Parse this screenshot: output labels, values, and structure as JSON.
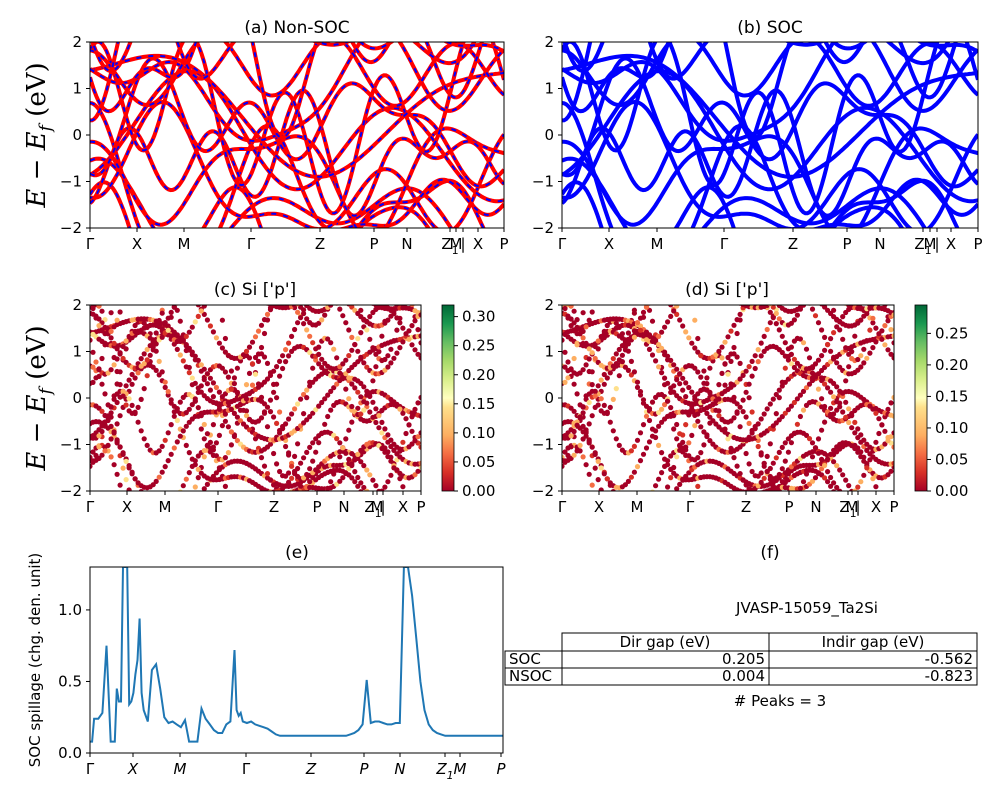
{
  "figure": {
    "ylabel": "E − E",
    "ylabel_sub": "f",
    "ylabel_unit": "(eV)"
  },
  "kpath_labels": [
    "Γ",
    "X",
    "M",
    "Γ",
    "Z",
    "P",
    "N",
    "Z",
    "M",
    "|",
    "X",
    "P"
  ],
  "kpath_labels_e": [
    "Γ",
    "X",
    "M",
    "Γ",
    "Z",
    "P",
    "N",
    "Z",
    "M",
    "P"
  ],
  "kpath_subscript": "1",
  "panels": {
    "a": {
      "title": "(a) Non-SOC",
      "line_color": "#ff0000",
      "dash_color": "#0000ff"
    },
    "b": {
      "title": "(b) SOC",
      "line_color": "#0000ff"
    },
    "c": {
      "title": "(c)  Si ['p']",
      "colorbar_ticks": [
        "0.00",
        "0.05",
        "0.10",
        "0.15",
        "0.20",
        "0.25",
        "0.30"
      ],
      "colorbar_max": 0.32
    },
    "d": {
      "title": "(d) Si ['p']",
      "colorbar_ticks": [
        "0.00",
        "0.05",
        "0.10",
        "0.15",
        "0.20",
        "0.25"
      ],
      "colorbar_max": 0.295
    },
    "e": {
      "title": "(e)",
      "ylabel": "SOC spillage (chg. den. unit)",
      "line_color": "#1f77b4"
    },
    "f": {
      "title": "(f)",
      "material": "JVASP-15059_Ta2Si",
      "table": {
        "headers": [
          "",
          "Dir gap (eV)",
          "Indir gap (eV)"
        ],
        "rows": [
          [
            "SOC",
            "0.205",
            "-0.562"
          ],
          [
            "NSOC",
            "0.004",
            "-0.823"
          ]
        ]
      },
      "peaks": "# Peaks = 3"
    }
  },
  "chart_data": [
    {
      "panel": "a",
      "type": "line",
      "title": "(a) Non-SOC",
      "ylabel": "E − E_f (eV)",
      "ylim": [
        -2,
        2
      ],
      "yticks": [
        -2,
        -1,
        0,
        1,
        2
      ],
      "x_ticks": [
        "Γ",
        "X",
        "M",
        "Γ",
        "Z",
        "P",
        "N",
        "Z1",
        "M",
        "|",
        "X",
        "P"
      ],
      "series_note": "band lines drawn red with dashed blue overlay"
    },
    {
      "panel": "b",
      "type": "line",
      "title": "(b) SOC",
      "ylabel": "",
      "ylim": [
        -2,
        2
      ],
      "yticks": [
        -2,
        -1,
        0,
        1,
        2
      ],
      "x_ticks": [
        "Γ",
        "X",
        "M",
        "Γ",
        "Z",
        "P",
        "N",
        "Z1",
        "M",
        "|",
        "X",
        "P"
      ]
    },
    {
      "panel": "c",
      "type": "scatter",
      "title": "(c)  Si ['p']",
      "ylim": [
        -2,
        2
      ],
      "colorbar_range": [
        0,
        0.32
      ]
    },
    {
      "panel": "d",
      "type": "scatter",
      "title": "(d) Si ['p']",
      "ylim": [
        -2,
        2
      ],
      "colorbar_range": [
        0,
        0.295
      ]
    },
    {
      "panel": "e",
      "type": "line",
      "title": "(e)",
      "ylabel": "SOC spillage (chg. den. unit)",
      "ylim": [
        0,
        1.3
      ],
      "yticks": [
        0.0,
        0.5,
        1.0
      ],
      "x_ticks": [
        "Γ",
        "X",
        "M",
        "Γ",
        "Z",
        "P",
        "N",
        "Z1",
        "M",
        "P"
      ],
      "x": [
        0,
        0.5,
        1,
        2,
        3,
        4,
        5,
        6,
        6.5,
        7,
        7.5,
        8,
        8.5,
        9,
        9.5,
        10,
        10.5,
        11,
        11.5,
        12,
        12.5,
        13,
        14,
        15,
        16,
        17,
        18,
        19,
        20,
        21,
        22,
        23,
        24,
        25,
        26,
        27,
        28,
        29,
        30,
        31,
        32,
        33,
        34,
        35,
        35.5,
        36,
        36.5,
        37,
        38,
        39,
        40,
        41,
        42,
        43,
        44,
        45,
        46,
        47,
        48,
        49,
        50,
        51,
        52,
        53,
        54,
        55,
        56,
        57,
        58,
        59,
        60,
        61,
        62,
        63,
        64,
        65,
        66,
        67,
        68,
        69,
        70,
        71,
        72,
        73,
        74,
        75,
        76,
        77,
        78,
        79,
        80,
        81,
        82,
        83,
        84,
        85,
        86,
        87,
        88,
        89,
        90,
        91,
        92,
        93,
        94,
        95,
        96,
        97,
        98,
        99,
        100
      ],
      "y": [
        0.08,
        0.08,
        0.24,
        0.24,
        0.28,
        0.75,
        0.08,
        0.08,
        0.45,
        0.36,
        0.36,
        1.3,
        1.3,
        1.3,
        0.34,
        0.36,
        0.42,
        0.55,
        0.65,
        0.94,
        0.42,
        0.3,
        0.22,
        0.58,
        0.62,
        0.45,
        0.25,
        0.21,
        0.22,
        0.2,
        0.18,
        0.23,
        0.08,
        0.08,
        0.08,
        0.31,
        0.24,
        0.2,
        0.16,
        0.14,
        0.14,
        0.2,
        0.22,
        0.72,
        0.3,
        0.26,
        0.28,
        0.22,
        0.21,
        0.22,
        0.2,
        0.19,
        0.18,
        0.17,
        0.15,
        0.13,
        0.12,
        0.12,
        0.12,
        0.12,
        0.12,
        0.12,
        0.12,
        0.12,
        0.12,
        0.12,
        0.12,
        0.12,
        0.12,
        0.12,
        0.12,
        0.12,
        0.12,
        0.13,
        0.14,
        0.16,
        0.2,
        0.51,
        0.21,
        0.22,
        0.22,
        0.21,
        0.2,
        0.2,
        0.21,
        0.21,
        1.3,
        1.3,
        1.1,
        0.8,
        0.5,
        0.3,
        0.2,
        0.16,
        0.14,
        0.13,
        0.12,
        0.12,
        0.12,
        0.12,
        0.12,
        0.12,
        0.12,
        0.12,
        0.12,
        0.12,
        0.12,
        0.12,
        0.12,
        0.12,
        0.12
      ]
    }
  ]
}
